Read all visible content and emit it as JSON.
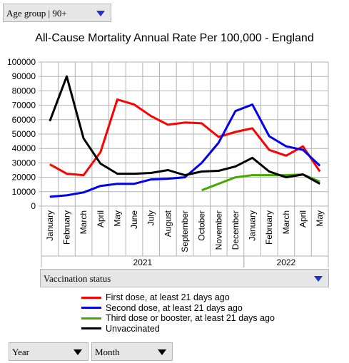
{
  "controls": {
    "age_group": "Age group | 90+",
    "vaccination": "Vaccination status",
    "year": "Year",
    "month": "Month"
  },
  "chart_data": {
    "type": "line",
    "title": "All-Cause Mortality Annual Rate Per 100,000 - England",
    "xlabel": "",
    "ylabel": "",
    "ylim": [
      0,
      100000
    ],
    "yticks": [
      "0",
      "10000",
      "20000",
      "30000",
      "40000",
      "50000",
      "60000",
      "70000",
      "80000",
      "90000",
      "100000"
    ],
    "categories": [
      "January",
      "February",
      "March",
      "April",
      "May",
      "June",
      "July",
      "August",
      "September",
      "October",
      "November",
      "December",
      "January",
      "February",
      "March",
      "April",
      "May"
    ],
    "year_groups": [
      {
        "label": "2021",
        "start": 0,
        "end": 11
      },
      {
        "label": "2022",
        "start": 12,
        "end": 16
      }
    ],
    "grid": true,
    "legend_position": "bottom",
    "series": [
      {
        "name": "First dose, at least 21 days ago",
        "color": "#ff0000",
        "values": [
          29000,
          22500,
          21500,
          37500,
          74000,
          70500,
          62500,
          56500,
          58000,
          57500,
          48000,
          51500,
          54000,
          39000,
          35000,
          41500,
          24000
        ]
      },
      {
        "name": "Second dose, at least 21 days ago",
        "color": "#0000ee",
        "values": [
          6500,
          7500,
          9500,
          14000,
          15500,
          15500,
          18500,
          19000,
          20000,
          30000,
          44000,
          66000,
          70500,
          48500,
          41500,
          39000,
          28000
        ]
      },
      {
        "name": "Third dose or booster, at least 21 days ago",
        "color": "#44aa00",
        "values": [
          null,
          null,
          null,
          null,
          null,
          null,
          null,
          null,
          null,
          11000,
          15500,
          20000,
          21500,
          21500,
          21500,
          22000,
          17000
        ]
      },
      {
        "name": "Unvaccinated",
        "color": "#000000",
        "values": [
          59000,
          90000,
          47000,
          29500,
          22500,
          22500,
          23000,
          25000,
          21500,
          24000,
          24500,
          27500,
          33500,
          24000,
          20000,
          22000,
          15500
        ]
      }
    ]
  }
}
